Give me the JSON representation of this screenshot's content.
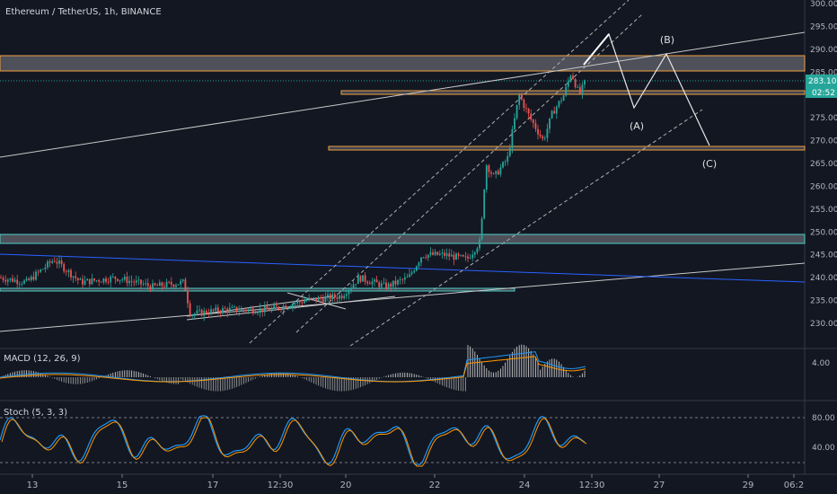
{
  "title": "Ethereum / TetherUS, 1h, BINANCE",
  "price_panel": {
    "yticks": [
      "300.00",
      "295.00",
      "290.00",
      "285.00",
      "280.00",
      "275.00",
      "270.00",
      "265.00",
      "260.00",
      "255.00",
      "250.00",
      "245.00",
      "240.00",
      "235.00",
      "230.00"
    ],
    "last_price": "283.10",
    "countdown": "02:52"
  },
  "wave_labels": [
    "(B)",
    "(A)",
    "(C)"
  ],
  "macd": {
    "label": "MACD (12, 26, 9)",
    "ytick": "4.00"
  },
  "stoch": {
    "label": "Stoch (5, 3, 3)",
    "yticks": [
      "80.00",
      "40.00"
    ]
  },
  "xticks": [
    "13",
    "15",
    "17",
    "12:30",
    "20",
    "22",
    "24",
    "12:30",
    "27",
    "29",
    "06:2"
  ],
  "colors": {
    "background": "#131722",
    "up": "#26a69a",
    "down": "#ef5350",
    "zone": "#f0a040",
    "zone_support": "#4dd0c8",
    "channel": "#2962ff",
    "stoch_k": "#2196f3",
    "stoch_d": "#ff9800"
  },
  "chart_data": {
    "type": "candlestick",
    "series": [
      {
        "name": "price",
        "ohlc_approx": [
          [
            240,
            244,
            236,
            238
          ],
          [
            238,
            245,
            236,
            243
          ],
          [
            243,
            246,
            239,
            240
          ],
          [
            240,
            242,
            237,
            238
          ],
          [
            238,
            242,
            236,
            240
          ],
          [
            240,
            241,
            236,
            237
          ],
          [
            237,
            238,
            230,
            231
          ],
          [
            231,
            233,
            230,
            232
          ],
          [
            232,
            234,
            231,
            233
          ],
          [
            233,
            236,
            232,
            235
          ],
          [
            235,
            238,
            233,
            236
          ],
          [
            236,
            240,
            235,
            239
          ],
          [
            239,
            240,
            236,
            237
          ],
          [
            237,
            240,
            235,
            238
          ],
          [
            238,
            244,
            237,
            243
          ],
          [
            243,
            247,
            242,
            245
          ],
          [
            245,
            246,
            242,
            243
          ],
          [
            243,
            247,
            242,
            246
          ],
          [
            246,
            260,
            245,
            258
          ],
          [
            258,
            266,
            256,
            262
          ],
          [
            262,
            268,
            260,
            266
          ],
          [
            266,
            280,
            264,
            278
          ],
          [
            278,
            280,
            270,
            273
          ],
          [
            273,
            278,
            268,
            276
          ],
          [
            276,
            282,
            274,
            280
          ],
          [
            280,
            287,
            278,
            285
          ],
          [
            285,
            286,
            279,
            283
          ]
        ]
      }
    ],
    "ylim": [
      227,
      300
    ]
  }
}
